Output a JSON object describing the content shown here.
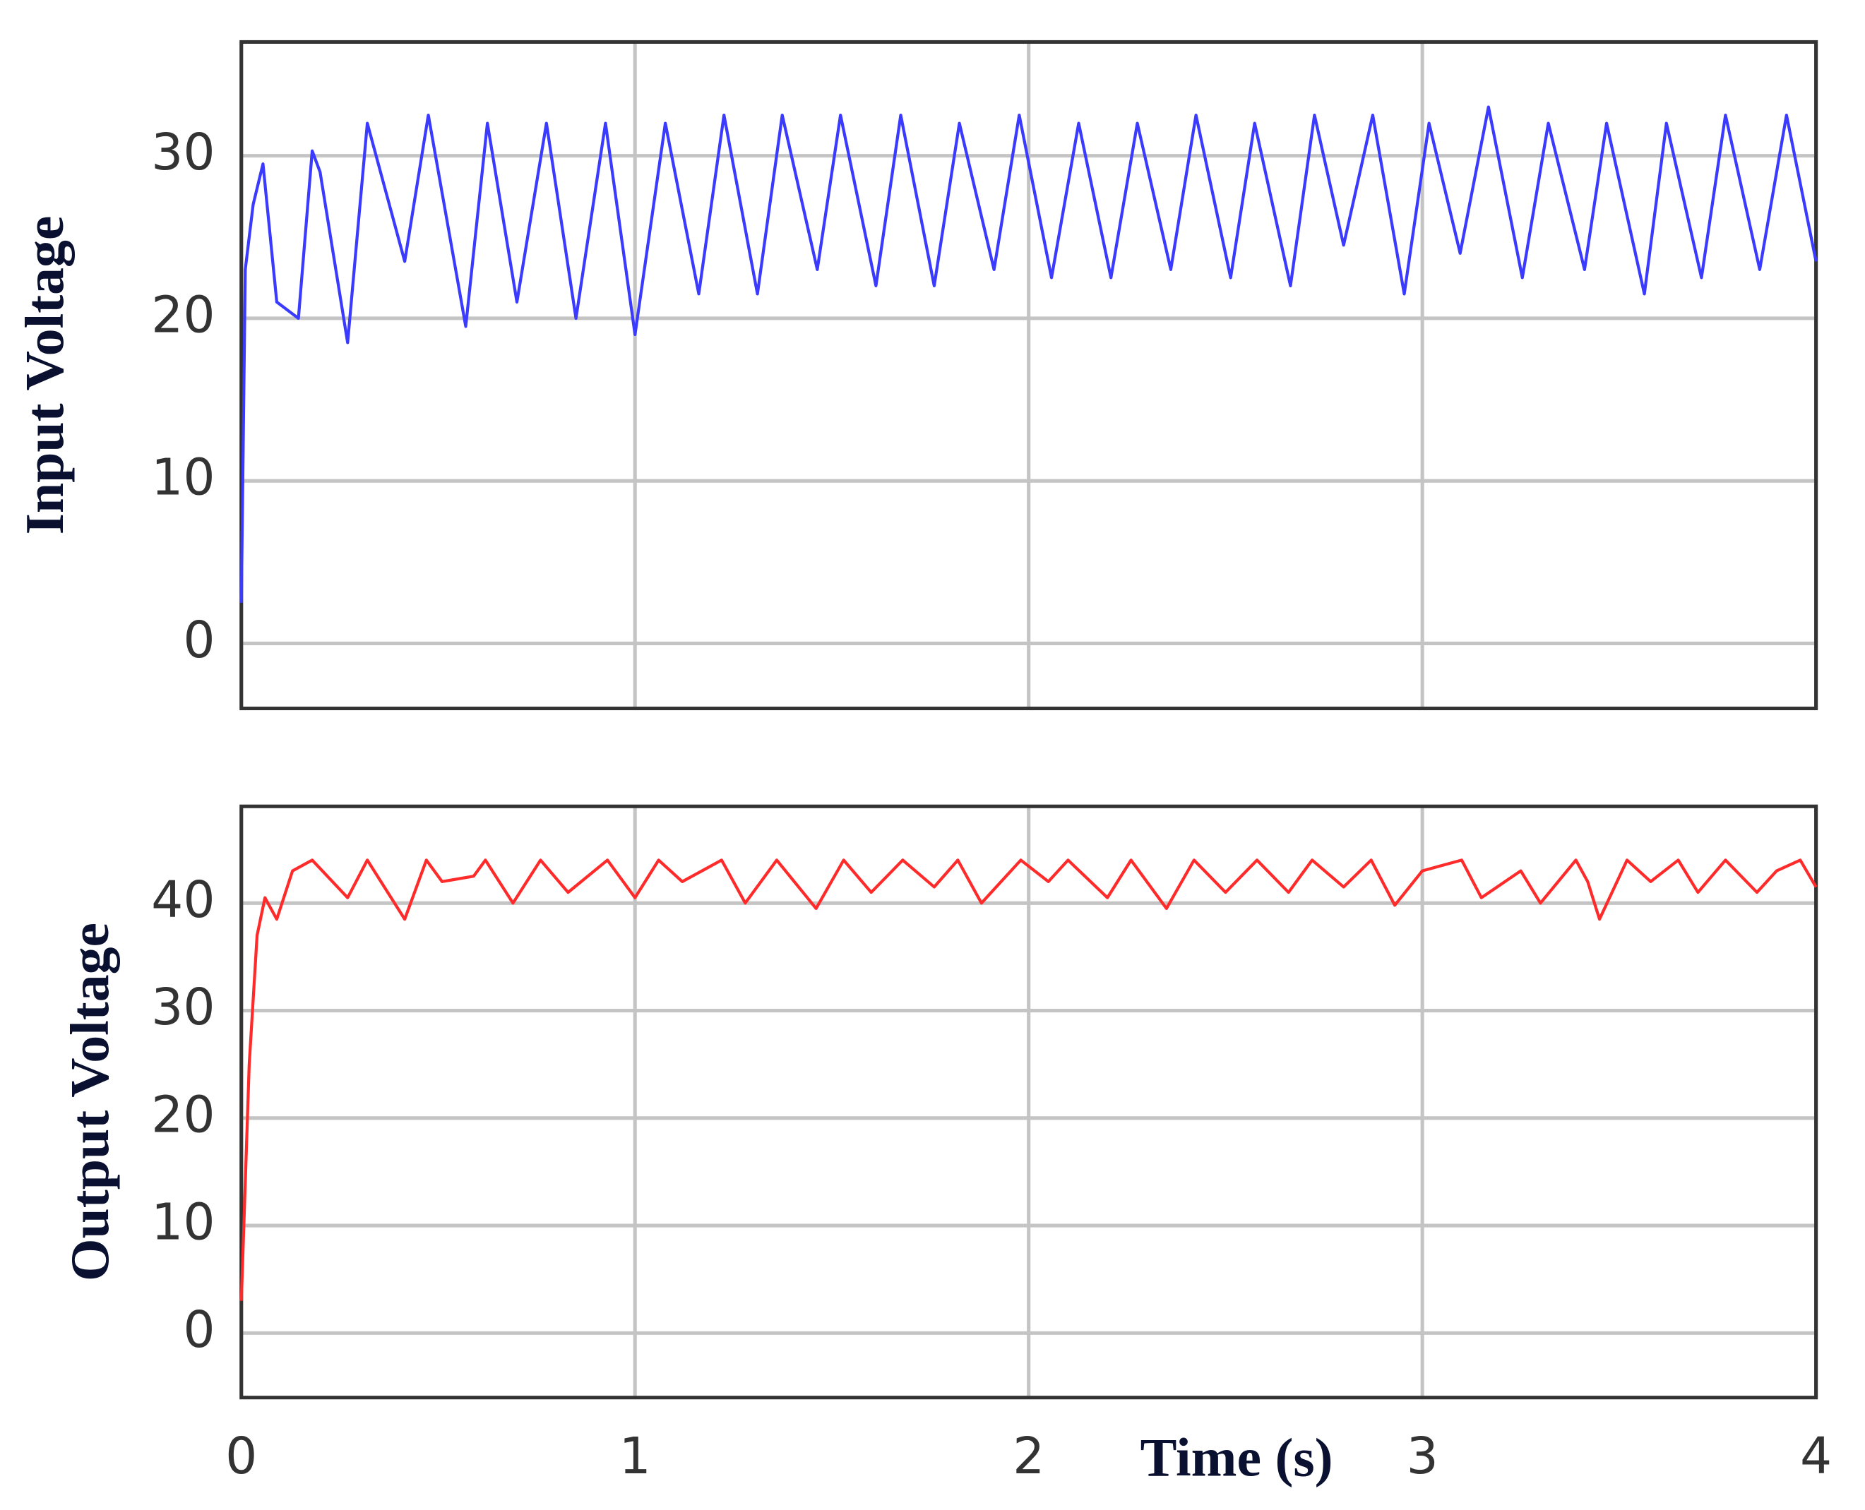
{
  "chart_data": [
    {
      "type": "line",
      "ylabel": "Input Voltage",
      "xlim": [
        0,
        4
      ],
      "ylim": [
        -4,
        37
      ],
      "xticks": [
        0,
        1,
        2,
        3,
        4
      ],
      "yticks": [
        0,
        10,
        20,
        30
      ],
      "grid": true,
      "x": [
        0,
        0.01,
        0.03,
        0.055,
        0.09,
        0.145,
        0.18,
        0.2,
        0.27,
        0.32,
        0.415,
        0.475,
        0.57,
        0.625,
        0.7,
        0.775,
        0.85,
        0.925,
        1.0,
        1.077,
        1.162,
        1.226,
        1.311,
        1.374,
        1.463,
        1.522,
        1.612,
        1.675,
        1.76,
        1.824,
        1.912,
        1.976,
        2.058,
        2.127,
        2.209,
        2.276,
        2.361,
        2.425,
        2.513,
        2.574,
        2.665,
        2.726,
        2.8,
        2.874,
        2.954,
        3.017,
        3.096,
        3.168,
        3.254,
        3.32,
        3.412,
        3.468,
        3.564,
        3.62,
        3.709,
        3.77,
        3.857,
        3.925,
        4.0
      ],
      "series": [
        {
          "name": "Input Voltage",
          "color": "#3b3bff",
          "values": [
            2.5,
            23,
            27,
            29.5,
            21,
            20,
            30.3,
            29,
            18.5,
            32,
            23.5,
            32.5,
            19.5,
            32,
            21,
            32,
            20,
            32,
            19,
            32,
            21.5,
            32.5,
            21.5,
            32.5,
            23,
            32.5,
            22,
            32.5,
            22,
            32,
            23,
            32.5,
            22.5,
            32,
            22.5,
            32,
            23,
            32.5,
            22.5,
            32,
            22,
            32.5,
            24.5,
            32.5,
            21.5,
            32,
            24,
            33,
            22.5,
            32,
            23,
            32,
            21.5,
            32,
            22.5,
            32.5,
            23,
            32.5,
            23.5
          ]
        }
      ]
    },
    {
      "type": "line",
      "ylabel": "Output Voltage",
      "xlabel": "Time (s)",
      "xlim": [
        0,
        4
      ],
      "ylim": [
        -6,
        49
      ],
      "xticks": [
        0,
        1,
        2,
        3,
        4
      ],
      "yticks": [
        0,
        10,
        20,
        30,
        40
      ],
      "grid": true,
      "x": [
        0,
        0.02,
        0.04,
        0.06,
        0.09,
        0.13,
        0.18,
        0.27,
        0.32,
        0.415,
        0.47,
        0.51,
        0.59,
        0.62,
        0.69,
        0.76,
        0.83,
        0.93,
        1.0,
        1.06,
        1.12,
        1.22,
        1.28,
        1.36,
        1.46,
        1.53,
        1.6,
        1.68,
        1.76,
        1.82,
        1.88,
        1.98,
        2.05,
        2.1,
        2.2,
        2.26,
        2.35,
        2.42,
        2.5,
        2.58,
        2.66,
        2.72,
        2.8,
        2.87,
        2.93,
        3.0,
        3.1,
        3.15,
        3.25,
        3.3,
        3.39,
        3.42,
        3.45,
        3.52,
        3.58,
        3.65,
        3.7,
        3.77,
        3.85,
        3.9,
        3.96,
        4.0
      ],
      "series": [
        {
          "name": "Output Voltage",
          "color": "#ff2a2a",
          "values": [
            3,
            25,
            37,
            40.5,
            38.5,
            43,
            44,
            40.5,
            44,
            38.5,
            44,
            42,
            42.5,
            44,
            40,
            44,
            41,
            44,
            40.5,
            44,
            42,
            44,
            40,
            44,
            39.5,
            44,
            41,
            44,
            41.5,
            44,
            40,
            44,
            42,
            44,
            40.5,
            44,
            39.5,
            44,
            41,
            44,
            41,
            44,
            41.5,
            44,
            39.8,
            43,
            44,
            40.5,
            43,
            40,
            44,
            42,
            38.5,
            44,
            42,
            44,
            41,
            44,
            41,
            43,
            44,
            41.5
          ]
        }
      ]
    }
  ]
}
